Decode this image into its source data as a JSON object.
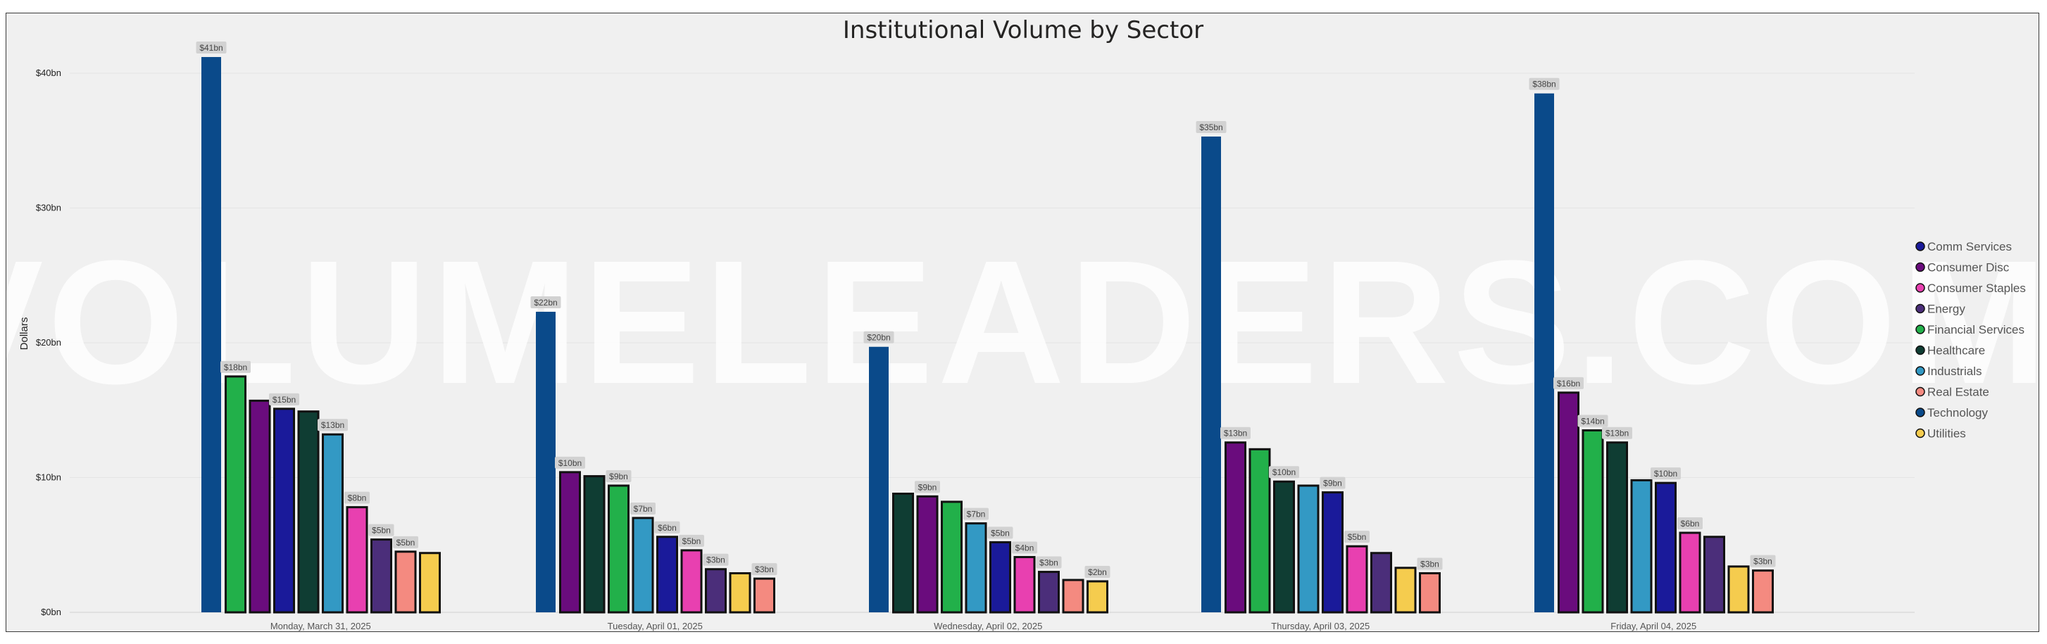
{
  "chart_data": {
    "type": "bar",
    "title": "Institutional Volume by Sector",
    "xlabel": "",
    "ylabel": "Dollars",
    "ylim": [
      0,
      42
    ],
    "yticks": [
      0,
      10,
      20,
      30,
      40
    ],
    "ytick_labels": [
      "$0bn",
      "$10bn",
      "$20bn",
      "$30bn",
      "$40bn"
    ],
    "watermark": "VOLUMELEADERS.COM",
    "legend_position": "right",
    "series_info": [
      {
        "name": "Comm Services",
        "color": "#1a1a9a"
      },
      {
        "name": "Consumer Disc",
        "color": "#6a0c7d"
      },
      {
        "name": "Consumer Staples",
        "color": "#e840b0"
      },
      {
        "name": "Energy",
        "color": "#4b2e7a"
      },
      {
        "name": "Financial Services",
        "color": "#22b04a"
      },
      {
        "name": "Healthcare",
        "color": "#0f3d33"
      },
      {
        "name": "Industrials",
        "color": "#3399c4"
      },
      {
        "name": "Real Estate",
        "color": "#f48a80"
      },
      {
        "name": "Technology",
        "color": "#0a4a8a"
      },
      {
        "name": "Utilities",
        "color": "#f5cc4e"
      }
    ],
    "groups": [
      {
        "category": "Monday, March 31, 2025",
        "bars": [
          {
            "sector": "Technology",
            "value": 41.2,
            "label": "$41bn"
          },
          {
            "sector": "Financial Services",
            "value": 17.5,
            "label": "$18bn"
          },
          {
            "sector": "Consumer Disc",
            "value": 15.7,
            "label": ""
          },
          {
            "sector": "Comm Services",
            "value": 15.1,
            "label": "$15bn"
          },
          {
            "sector": "Healthcare",
            "value": 14.9,
            "label": ""
          },
          {
            "sector": "Industrials",
            "value": 13.2,
            "label": "$13bn"
          },
          {
            "sector": "Consumer Staples",
            "value": 7.8,
            "label": "$8bn"
          },
          {
            "sector": "Energy",
            "value": 5.4,
            "label": "$5bn"
          },
          {
            "sector": "Real Estate",
            "value": 4.5,
            "label": "$5bn"
          },
          {
            "sector": "Utilities",
            "value": 4.4,
            "label": ""
          }
        ]
      },
      {
        "category": "Tuesday, April 01, 2025",
        "bars": [
          {
            "sector": "Technology",
            "value": 22.3,
            "label": "$22bn"
          },
          {
            "sector": "Consumer Disc",
            "value": 10.4,
            "label": "$10bn"
          },
          {
            "sector": "Healthcare",
            "value": 10.1,
            "label": ""
          },
          {
            "sector": "Financial Services",
            "value": 9.4,
            "label": "$9bn"
          },
          {
            "sector": "Industrials",
            "value": 7.0,
            "label": "$7bn"
          },
          {
            "sector": "Comm Services",
            "value": 5.6,
            "label": "$6bn"
          },
          {
            "sector": "Consumer Staples",
            "value": 4.6,
            "label": "$5bn"
          },
          {
            "sector": "Energy",
            "value": 3.2,
            "label": "$3bn"
          },
          {
            "sector": "Utilities",
            "value": 2.9,
            "label": ""
          },
          {
            "sector": "Real Estate",
            "value": 2.5,
            "label": "$3bn"
          }
        ]
      },
      {
        "category": "Wednesday, April 02, 2025",
        "bars": [
          {
            "sector": "Technology",
            "value": 19.7,
            "label": "$20bn"
          },
          {
            "sector": "Healthcare",
            "value": 8.8,
            "label": ""
          },
          {
            "sector": "Consumer Disc",
            "value": 8.6,
            "label": "$9bn"
          },
          {
            "sector": "Financial Services",
            "value": 8.2,
            "label": ""
          },
          {
            "sector": "Industrials",
            "value": 6.6,
            "label": "$7bn"
          },
          {
            "sector": "Comm Services",
            "value": 5.2,
            "label": "$5bn"
          },
          {
            "sector": "Consumer Staples",
            "value": 4.1,
            "label": "$4bn"
          },
          {
            "sector": "Energy",
            "value": 3.0,
            "label": "$3bn"
          },
          {
            "sector": "Real Estate",
            "value": 2.4,
            "label": ""
          },
          {
            "sector": "Utilities",
            "value": 2.3,
            "label": "$2bn"
          }
        ]
      },
      {
        "category": "Thursday, April 03, 2025",
        "bars": [
          {
            "sector": "Technology",
            "value": 35.3,
            "label": "$35bn"
          },
          {
            "sector": "Consumer Disc",
            "value": 12.6,
            "label": "$13bn"
          },
          {
            "sector": "Financial Services",
            "value": 12.1,
            "label": ""
          },
          {
            "sector": "Healthcare",
            "value": 9.7,
            "label": "$10bn"
          },
          {
            "sector": "Industrials",
            "value": 9.4,
            "label": ""
          },
          {
            "sector": "Comm Services",
            "value": 8.9,
            "label": "$9bn"
          },
          {
            "sector": "Consumer Staples",
            "value": 4.9,
            "label": "$5bn"
          },
          {
            "sector": "Energy",
            "value": 4.4,
            "label": ""
          },
          {
            "sector": "Utilities",
            "value": 3.3,
            "label": ""
          },
          {
            "sector": "Real Estate",
            "value": 2.9,
            "label": "$3bn"
          }
        ]
      },
      {
        "category": "Friday, April 04, 2025",
        "bars": [
          {
            "sector": "Technology",
            "value": 38.5,
            "label": "$38bn"
          },
          {
            "sector": "Consumer Disc",
            "value": 16.3,
            "label": "$16bn"
          },
          {
            "sector": "Financial Services",
            "value": 13.5,
            "label": "$14bn"
          },
          {
            "sector": "Healthcare",
            "value": 12.6,
            "label": "$13bn"
          },
          {
            "sector": "Industrials",
            "value": 9.8,
            "label": ""
          },
          {
            "sector": "Comm Services",
            "value": 9.6,
            "label": "$10bn"
          },
          {
            "sector": "Consumer Staples",
            "value": 5.9,
            "label": "$6bn"
          },
          {
            "sector": "Energy",
            "value": 5.6,
            "label": ""
          },
          {
            "sector": "Utilities",
            "value": 3.4,
            "label": ""
          },
          {
            "sector": "Real Estate",
            "value": 3.1,
            "label": "$3bn"
          }
        ]
      }
    ]
  }
}
